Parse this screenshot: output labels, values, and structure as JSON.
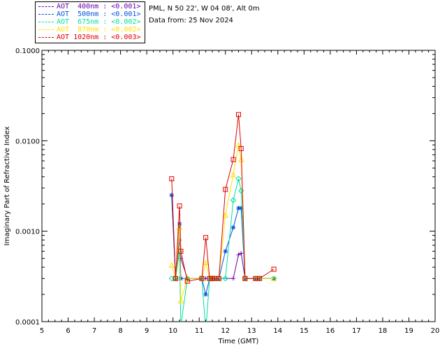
{
  "header": {
    "site": "PML, N 50 22', W 04 08', Alt 0m",
    "date": "Data from: 25 Nov 2024"
  },
  "chart_data": {
    "type": "line",
    "title": "",
    "xlabel": "Time (GMT)",
    "ylabel": "Imaginary Part of Refractive Index",
    "xlim": [
      5,
      20
    ],
    "ylim": [
      0.0001,
      0.1
    ],
    "yscale": "log",
    "x_ticks": [
      "5",
      "6",
      "7",
      "8",
      "9",
      "10",
      "11",
      "12",
      "13",
      "14",
      "15",
      "16",
      "17",
      "18",
      "19",
      "20"
    ],
    "y_ticks": [
      "0.0001",
      "0.0010",
      "0.0100",
      "0.1000"
    ],
    "series": [
      {
        "name": "AOT 400nm",
        "legend": "AOT  400nm : <0.001>",
        "color": "#6a00a8",
        "marker": "plus",
        "x": [
          9.95,
          10.1,
          10.25,
          10.3,
          10.55,
          11.1,
          11.25,
          11.4,
          11.5,
          11.6,
          11.75,
          12.3,
          12.5,
          12.6,
          12.75,
          13.15,
          13.3,
          13.85
        ],
        "y": [
          0.0025,
          0.0003,
          0.0008,
          0.0005,
          0.0003,
          0.0003,
          0.0003,
          0.0003,
          0.0003,
          0.0003,
          0.0003,
          0.0003,
          0.00055,
          0.00057,
          0.0003,
          0.0003,
          0.0003,
          0.0003
        ]
      },
      {
        "name": "AOT 500nm",
        "legend": "AOT  500nm : <0.001>",
        "color": "#0050e0",
        "marker": "asterisk",
        "x": [
          9.95,
          10.1,
          10.25,
          10.3,
          10.55,
          11.1,
          11.25,
          11.4,
          11.5,
          11.6,
          11.75,
          12.0,
          12.3,
          12.5,
          12.6,
          12.75,
          13.15,
          13.3,
          13.85
        ],
        "y": [
          0.0025,
          0.0003,
          0.0012,
          0.0003,
          0.0003,
          0.0003,
          0.0002,
          0.0003,
          0.0003,
          0.0003,
          0.0003,
          0.0006,
          0.0011,
          0.0018,
          0.0018,
          0.0003,
          0.0003,
          0.0003,
          0.0003
        ]
      },
      {
        "name": "AOT 675nm",
        "legend": "AOT  675nm : <0.002>",
        "color": "#00e0a0",
        "marker": "diamond",
        "x": [
          9.95,
          10.1,
          10.25,
          10.3,
          10.55,
          11.1,
          11.25,
          11.4,
          11.5,
          11.6,
          11.75,
          12.0,
          12.3,
          12.5,
          12.6,
          12.75,
          13.15,
          13.3,
          13.85
        ],
        "y": [
          0.0003,
          0.0003,
          0.0006,
          9e-05,
          0.0003,
          0.0003,
          8e-05,
          0.0003,
          0.0003,
          0.0003,
          0.0003,
          0.0003,
          0.0022,
          0.0038,
          0.0028,
          0.0003,
          0.0003,
          0.0003,
          0.0003
        ]
      },
      {
        "name": "AOT 870nm",
        "legend": "AOT  870nm : <0.002>",
        "color": "#ffe000",
        "marker": "triangle",
        "x": [
          9.95,
          10.1,
          10.25,
          10.3,
          10.55,
          11.1,
          11.25,
          11.4,
          11.5,
          11.6,
          11.75,
          12.0,
          12.3,
          12.5,
          12.6,
          12.75,
          13.15,
          13.3,
          13.85
        ],
        "y": [
          0.00042,
          0.0003,
          0.0011,
          0.00017,
          0.0003,
          0.0003,
          0.00045,
          0.0003,
          0.0003,
          0.0003,
          0.0003,
          0.0015,
          0.0042,
          0.009,
          0.0062,
          0.0003,
          0.0003,
          0.0003,
          0.0003
        ]
      },
      {
        "name": "AOT 1020nm",
        "legend": "AOT 1020nm : <0.003>",
        "color": "#e00000",
        "marker": "square",
        "x": [
          9.95,
          10.1,
          10.25,
          10.3,
          10.55,
          11.1,
          11.25,
          11.4,
          11.5,
          11.6,
          11.75,
          12.0,
          12.3,
          12.5,
          12.6,
          12.75,
          13.15,
          13.3,
          13.85
        ],
        "y": [
          0.0038,
          0.0003,
          0.0019,
          0.0006,
          0.00028,
          0.0003,
          0.00085,
          0.0003,
          0.0003,
          0.0003,
          0.0003,
          0.0029,
          0.0062,
          0.0195,
          0.0082,
          0.0003,
          0.0003,
          0.0003,
          0.00038
        ]
      }
    ]
  }
}
